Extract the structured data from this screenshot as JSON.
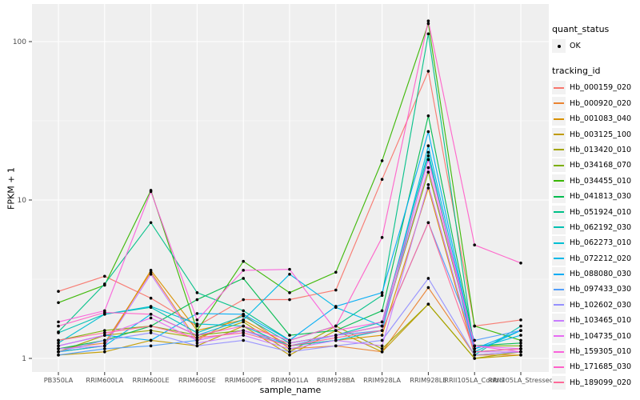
{
  "chart_data": {
    "type": "line",
    "title": "",
    "xlabel": "sample_name",
    "ylabel": "FPKM + 1",
    "y_scale": "log10",
    "y_ticks": [
      1,
      10,
      100
    ],
    "y_minor_ticks": [
      3.1623,
      31.623
    ],
    "ylim": [
      0.82,
      166
    ],
    "grid": true,
    "legend_position": "right",
    "panel_bg": "#EFEFEF",
    "grid_color": "#FFFFFF",
    "tick_color": "#333333",
    "tick_label_color": "#4D4D4D",
    "point_color": "#000000",
    "categories": [
      "PB350LA",
      "RRIM600LA",
      "RRIM600LE",
      "RRIM600SE",
      "RRIM600PE",
      "RRIM901LA",
      "RRIM928BA",
      "RRIM928LA",
      "RRIM928LE",
      "RRII105LA_Control",
      "RRII105LA_Stressed"
    ],
    "series": [
      {
        "name": "Hb_000159_020",
        "color": "#F8766D",
        "values": [
          2.65,
          3.3,
          2.4,
          1.6,
          2.35,
          2.35,
          2.7,
          13.5,
          65,
          1.6,
          1.75
        ]
      },
      {
        "name": "Hb_000920_020",
        "color": "#EA8331",
        "values": [
          1.15,
          1.25,
          3.5,
          1.3,
          1.9,
          1.15,
          1.2,
          1.1,
          2.8,
          1.05,
          1.05
        ]
      },
      {
        "name": "Hb_001083_040",
        "color": "#D89000",
        "values": [
          1.1,
          1.2,
          3.6,
          1.5,
          1.75,
          1.2,
          1.3,
          1.4,
          11.9,
          1.05,
          1.1
        ]
      },
      {
        "name": "Hb_003125_100",
        "color": "#C09B00",
        "values": [
          1.05,
          1.1,
          1.3,
          1.2,
          1.6,
          1.05,
          1.5,
          1.1,
          2.2,
          1.0,
          1.05
        ]
      },
      {
        "name": "Hb_013420_010",
        "color": "#A3A500",
        "values": [
          1.1,
          1.4,
          1.5,
          1.35,
          1.7,
          1.1,
          1.6,
          1.15,
          2.2,
          1.0,
          1.1
        ]
      },
      {
        "name": "Hb_034168_070",
        "color": "#7CAE00",
        "values": [
          1.3,
          1.5,
          1.6,
          1.4,
          1.5,
          1.25,
          1.4,
          1.6,
          15,
          1.2,
          1.2
        ]
      },
      {
        "name": "Hb_034455_010",
        "color": "#39B600",
        "values": [
          2.25,
          2.9,
          11.5,
          1.5,
          4.1,
          2.6,
          3.5,
          17.7,
          130,
          1.6,
          1.3
        ]
      },
      {
        "name": "Hb_041813_030",
        "color": "#00BB4E",
        "values": [
          1.15,
          1.3,
          1.6,
          2.35,
          3.2,
          1.4,
          1.5,
          2.0,
          34,
          1.2,
          1.25
        ]
      },
      {
        "name": "Hb_051924_010",
        "color": "#00C087",
        "values": [
          1.47,
          2.95,
          7.2,
          2.6,
          2.0,
          1.3,
          1.6,
          2.5,
          112,
          1.1,
          1.15
        ]
      },
      {
        "name": "Hb_062192_030",
        "color": "#00C0B2",
        "values": [
          1.45,
          1.9,
          2.1,
          1.45,
          1.85,
          1.25,
          1.4,
          1.7,
          20,
          1.05,
          1.6
        ]
      },
      {
        "name": "Hb_062273_010",
        "color": "#00BFD3",
        "values": [
          1.25,
          1.9,
          2.13,
          1.65,
          1.6,
          1.2,
          1.3,
          1.5,
          19,
          1.1,
          1.5
        ]
      },
      {
        "name": "Hb_072212_020",
        "color": "#00B8E7",
        "values": [
          1.1,
          1.2,
          1.9,
          1.4,
          1.75,
          3.4,
          2.1,
          1.6,
          22,
          1.15,
          1.4
        ]
      },
      {
        "name": "Hb_088080_030",
        "color": "#00ACF4",
        "values": [
          1.2,
          1.4,
          1.3,
          1.92,
          1.9,
          1.3,
          2.13,
          2.6,
          27,
          1.15,
          1.5
        ]
      },
      {
        "name": "Hb_097433_030",
        "color": "#529EFA",
        "values": [
          1.05,
          1.15,
          1.2,
          1.3,
          1.5,
          1.2,
          1.4,
          1.5,
          7.2,
          1.3,
          1.5
        ]
      },
      {
        "name": "Hb_102602_030",
        "color": "#9590FF",
        "values": [
          1.1,
          1.3,
          1.45,
          1.2,
          1.3,
          1.1,
          1.2,
          1.3,
          3.2,
          1.05,
          1.1
        ]
      },
      {
        "name": "Hb_103465_010",
        "color": "#C77CFF",
        "values": [
          1.15,
          1.2,
          3.4,
          1.25,
          1.4,
          1.15,
          1.3,
          1.2,
          12.5,
          1.1,
          1.1
        ]
      },
      {
        "name": "Hb_104735_010",
        "color": "#E76BF3",
        "values": [
          1.2,
          1.4,
          1.8,
          1.3,
          1.5,
          1.25,
          1.4,
          1.6,
          16,
          1.2,
          1.15
        ]
      },
      {
        "name": "Hb_159305_010",
        "color": "#FA62DB",
        "values": [
          1.7,
          2.0,
          11.3,
          1.75,
          3.6,
          3.65,
          1.5,
          1.7,
          18,
          1.2,
          1.1
        ]
      },
      {
        "name": "Hb_171685_030",
        "color": "#FF61C9",
        "values": [
          1.6,
          1.95,
          1.9,
          1.4,
          1.6,
          1.3,
          1.6,
          5.8,
          135,
          5.2,
          4.0
        ]
      },
      {
        "name": "Hb_189099_020",
        "color": "#FF6A98",
        "values": [
          1.3,
          1.45,
          1.6,
          1.35,
          1.45,
          1.2,
          1.35,
          1.5,
          7.2,
          1.1,
          1.15
        ]
      }
    ]
  },
  "legend": {
    "quant_status": {
      "title": "quant_status",
      "items": [
        {
          "label": "OK",
          "marker": "point"
        }
      ]
    },
    "tracking_id": {
      "title": "tracking_id"
    },
    "key_bg": "#F2F2F2"
  }
}
